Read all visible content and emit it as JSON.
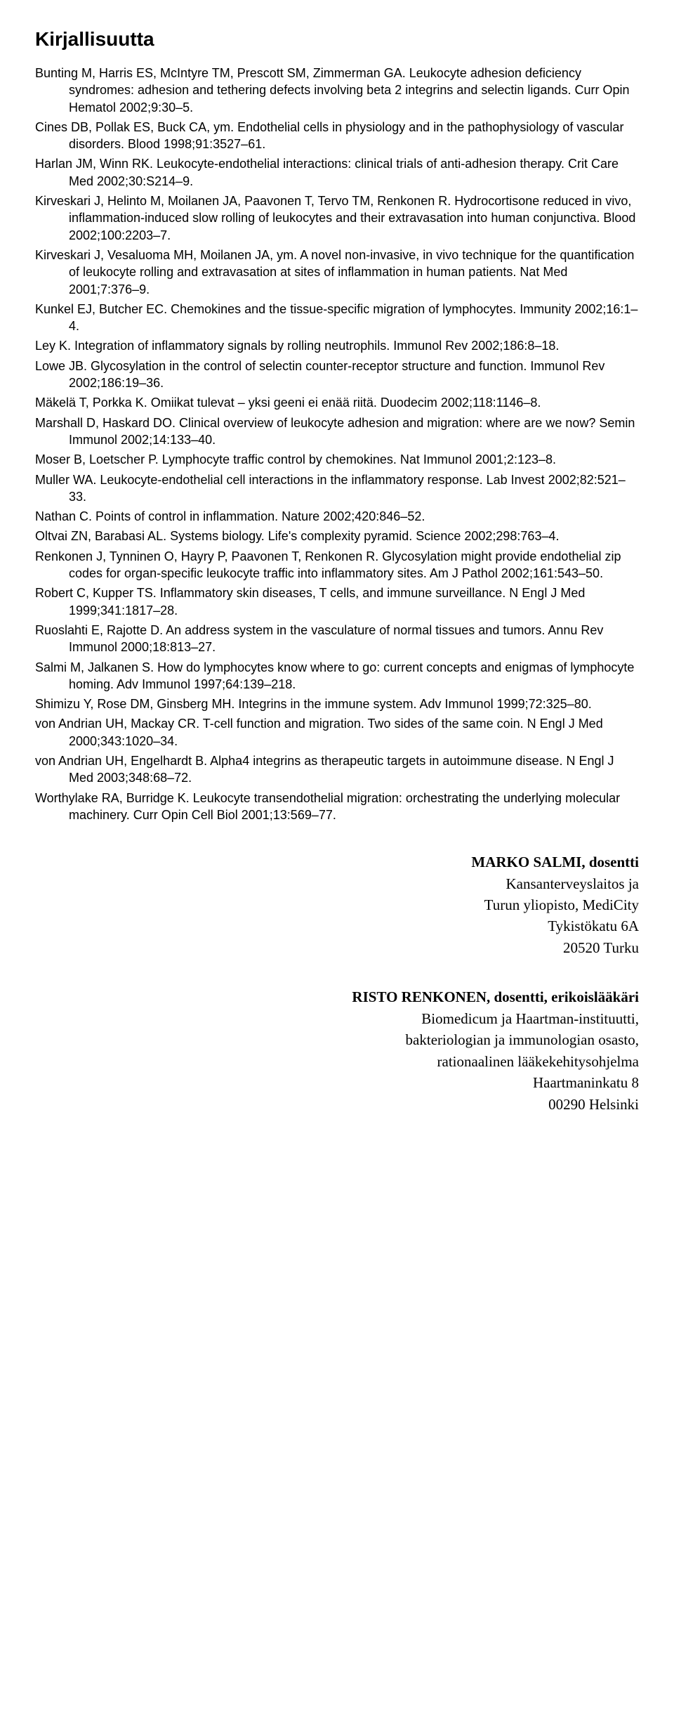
{
  "heading": "Kirjallisuutta",
  "heading_fontsize": 28,
  "ref_fontsize": 18,
  "author_fontsize": 21,
  "text_color": "#000000",
  "background_color": "#ffffff",
  "references": [
    "Bunting M, Harris ES, McIntyre TM, Prescott SM, Zimmerman GA. Leukocyte adhesion deficiency syndromes: adhesion and tethering defects involving beta 2 integrins and selectin ligands. Curr Opin Hematol 2002;9:30–5.",
    "Cines DB, Pollak ES, Buck CA, ym. Endothelial cells in physiology and in the pathophysiology of vascular disorders. Blood 1998;91:3527–61.",
    "Harlan JM, Winn RK. Leukocyte-endothelial interactions: clinical trials of anti-adhesion therapy. Crit Care Med 2002;30:S214–9.",
    "Kirveskari J, Helinto M, Moilanen JA, Paavonen T, Tervo TM, Renkonen R. Hydrocortisone reduced in vivo, inflammation-induced slow rolling of leukocytes and their extravasation into human conjunctiva. Blood 2002;100:2203–7.",
    "Kirveskari J, Vesaluoma MH, Moilanen JA, ym. A novel non-invasive, in vivo technique for the quantification of leukocyte rolling and extravasation at sites of inflammation in human patients. Nat Med 2001;7:376–9.",
    "Kunkel EJ, Butcher EC. Chemokines and the tissue-specific migration of lymphocytes. Immunity 2002;16:1–4.",
    "Ley K. Integration of inflammatory signals by rolling neutrophils. Immunol Rev 2002;186:8–18.",
    "Lowe JB. Glycosylation in the control of selectin counter-receptor structure and function. Immunol Rev 2002;186:19–36.",
    "Mäkelä T, Porkka K. Omiikat tulevat – yksi geeni ei enää riitä. Duodecim 2002;118:1146–8.",
    "Marshall D, Haskard DO. Clinical overview of leukocyte adhesion and migration: where are we now? Semin Immunol 2002;14:133–40.",
    "Moser B, Loetscher P. Lymphocyte traffic control by chemokines. Nat Immunol 2001;2:123–8.",
    "Muller WA. Leukocyte-endothelial cell interactions in the inflammatory response. Lab Invest 2002;82:521–33.",
    "Nathan C. Points of control in inflammation. Nature 2002;420:846–52.",
    "Oltvai ZN, Barabasi AL. Systems biology. Life's complexity pyramid. Science 2002;298:763–4.",
    "Renkonen J, Tynninen O, Hayry P, Paavonen T, Renkonen R. Glycosylation might provide endothelial zip codes for organ-specific leukocyte traffic into inflammatory sites. Am J Pathol 2002;161:543–50.",
    "Robert C, Kupper TS. Inflammatory skin diseases, T cells, and immune surveillance. N Engl J Med 1999;341:1817–28.",
    "Ruoslahti E, Rajotte D. An address system in the vasculature of normal tissues and tumors. Annu Rev Immunol 2000;18:813–27.",
    "Salmi M, Jalkanen S. How do lymphocytes know where to go: current concepts and enigmas of lymphocyte homing. Adv Immunol 1997;64:139–218.",
    "Shimizu Y, Rose DM, Ginsberg MH. Integrins in the immune system. Adv Immunol 1999;72:325–80.",
    "von Andrian UH, Mackay CR. T-cell function and migration. Two sides of the same coin. N Engl J Med 2000;343:1020–34.",
    "von Andrian UH, Engelhardt B. Alpha4 integrins as therapeutic targets in autoimmune disease. N Engl J Med 2003;348:68–72.",
    "Worthylake RA, Burridge K. Leukocyte transendothelial migration: orchestrating the underlying molecular machinery. Curr Opin Cell Biol 2001;13:569–77."
  ],
  "authors": [
    {
      "name": "MARKO SALMI, dosentti",
      "lines": [
        "Kansanterveyslaitos ja",
        "Turun yliopisto, MediCity",
        "Tykistökatu 6A",
        "20520 Turku"
      ]
    },
    {
      "name": "RISTO RENKONEN, dosentti, erikoislääkäri",
      "lines": [
        "Biomedicum ja Haartman-instituutti,",
        "bakteriologian ja immunologian osasto,",
        "rationaalinen lääkekehitysohjelma",
        "Haartmaninkatu 8",
        "00290 Helsinki"
      ]
    }
  ]
}
